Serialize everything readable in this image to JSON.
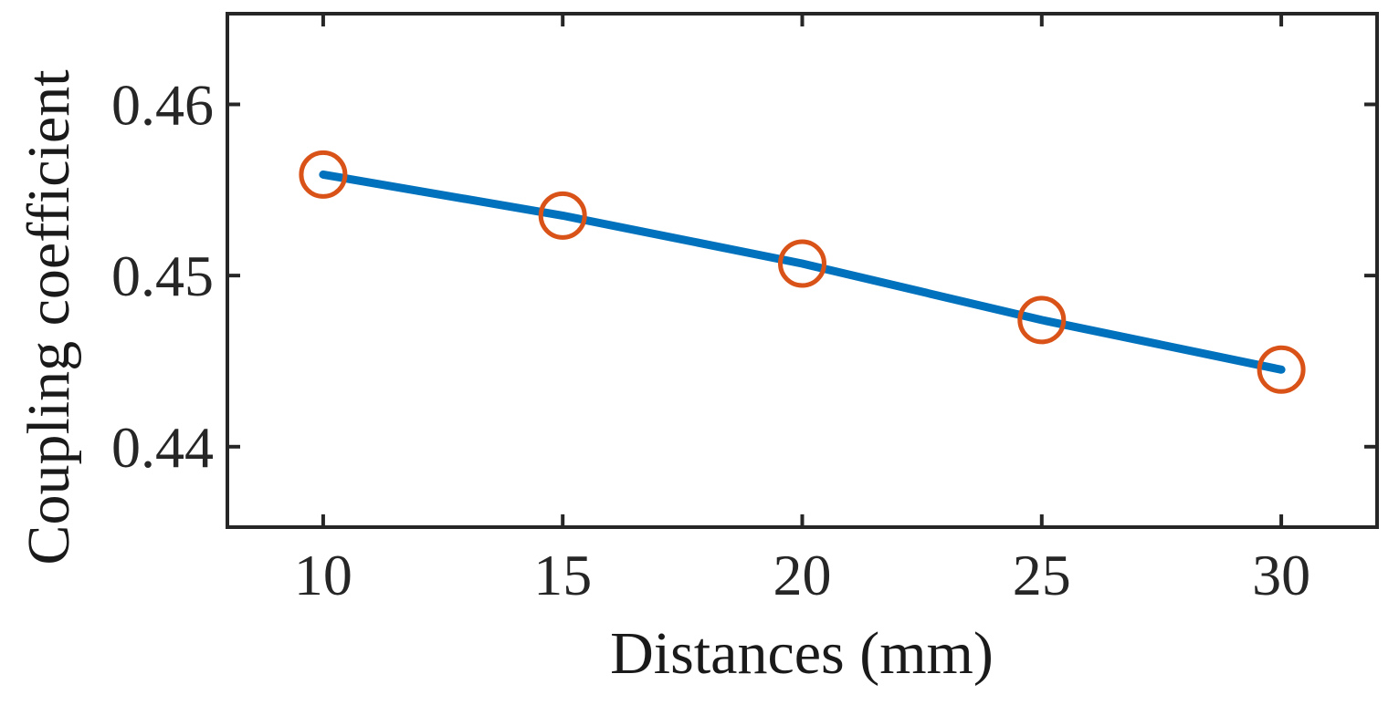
{
  "chart_data": {
    "type": "line",
    "title": "",
    "xlabel": "Distances (mm)",
    "ylabel": "Coupling coefficient",
    "x": [
      10,
      15,
      20,
      25,
      30
    ],
    "series": [
      {
        "values": [
          0.4559,
          0.4535,
          0.4507,
          0.4474,
          0.4445
        ],
        "line_color": "#0072BD",
        "marker": "circle",
        "marker_color": "#D95319"
      }
    ],
    "xlim": [
      8,
      32
    ],
    "ylim": [
      0.4353,
      0.4653
    ],
    "xticks": [
      10,
      15,
      20,
      25,
      30
    ],
    "xtick_labels": [
      "10",
      "15",
      "20",
      "25",
      "30"
    ],
    "yticks": [
      0.44,
      0.45,
      0.46
    ],
    "ytick_labels": [
      "0.44",
      "0.45",
      "0.46"
    ],
    "grid": false,
    "legend": "none"
  }
}
